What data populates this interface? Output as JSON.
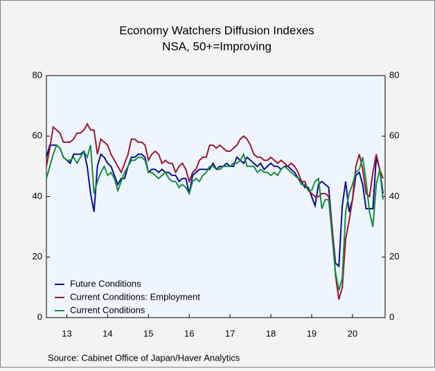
{
  "chart_data": {
    "type": "line",
    "title": "Economy Watchers Diffusion Indexes",
    "subtitle": "NSA, 50+=Improving",
    "source": "Source:  Cabinet Office of Japan/Haver Analytics",
    "legend": "lower left",
    "grid": false,
    "xlim": [
      2013,
      2021.3
    ],
    "xticks": [
      {
        "value": 2013.5,
        "label": "13"
      },
      {
        "value": 2014.5,
        "label": "14"
      },
      {
        "value": 2015.5,
        "label": "15"
      },
      {
        "value": 2016.5,
        "label": "16"
      },
      {
        "value": 2017.5,
        "label": "17"
      },
      {
        "value": 2018.5,
        "label": "18"
      },
      {
        "value": 2019.5,
        "label": "19"
      },
      {
        "value": 2020.5,
        "label": "20"
      }
    ],
    "ylim": [
      0,
      80
    ],
    "yticks": [
      0,
      20,
      40,
      60,
      80
    ],
    "y2lim": [
      0,
      80
    ],
    "y2ticks": [
      0,
      20,
      40,
      60,
      80
    ],
    "x": [
      2013,
      2013.083,
      2013.167,
      2013.25,
      2013.333,
      2013.417,
      2013.5,
      2013.583,
      2013.667,
      2013.75,
      2013.833,
      2013.917,
      2014,
      2014.083,
      2014.167,
      2014.25,
      2014.333,
      2014.417,
      2014.5,
      2014.583,
      2014.667,
      2014.75,
      2014.833,
      2014.917,
      2015,
      2015.083,
      2015.167,
      2015.25,
      2015.333,
      2015.417,
      2015.5,
      2015.583,
      2015.667,
      2015.75,
      2015.833,
      2015.917,
      2016,
      2016.083,
      2016.167,
      2016.25,
      2016.333,
      2016.417,
      2016.5,
      2016.583,
      2016.667,
      2016.75,
      2016.833,
      2016.917,
      2017,
      2017.083,
      2017.167,
      2017.25,
      2017.333,
      2017.417,
      2017.5,
      2017.583,
      2017.667,
      2017.75,
      2017.833,
      2017.917,
      2018,
      2018.083,
      2018.167,
      2018.25,
      2018.333,
      2018.417,
      2018.5,
      2018.583,
      2018.667,
      2018.75,
      2018.833,
      2018.917,
      2019,
      2019.083,
      2019.167,
      2019.25,
      2019.333,
      2019.417,
      2019.5,
      2019.583,
      2019.667,
      2019.75,
      2019.833,
      2019.917,
      2020,
      2020.083,
      2020.167,
      2020.25,
      2020.333,
      2020.417,
      2020.5,
      2020.583,
      2020.667,
      2020.75,
      2020.833,
      2020.917,
      2021,
      2021.083,
      2021.167,
      2021.25
    ],
    "series": [
      {
        "name": "Future Conditions",
        "color": "#0a0a96",
        "values": [
          53,
          57,
          57,
          57,
          56,
          53,
          52,
          51,
          54,
          54,
          54,
          55,
          50,
          41,
          35,
          50,
          54,
          53,
          51,
          50,
          47,
          44,
          46,
          46,
          50,
          53,
          53,
          54,
          54,
          53,
          48,
          49,
          49,
          48,
          49,
          48,
          48,
          47,
          47,
          45,
          46,
          46,
          41,
          47,
          48,
          49,
          49,
          49,
          49,
          51,
          49,
          50,
          50,
          51,
          50,
          50,
          53,
          52,
          51,
          53,
          52,
          51,
          50,
          51,
          49,
          50,
          51,
          50,
          50,
          49,
          50,
          50,
          49,
          48,
          46,
          45,
          43,
          43,
          40,
          37,
          44,
          45,
          44,
          43,
          30,
          18,
          17,
          37,
          45,
          35,
          39,
          47,
          48,
          44,
          36,
          36,
          36,
          53,
          49,
          41
        ]
      },
      {
        "name": "Current Conditions: Employment",
        "color": "#a0142d",
        "values": [
          50,
          56,
          63,
          62,
          61,
          58,
          58,
          58,
          59,
          61,
          61,
          62,
          64,
          62,
          62,
          54,
          59,
          58,
          57,
          54,
          52,
          50,
          48,
          51,
          54,
          59,
          59,
          58,
          58,
          57,
          52,
          54,
          55,
          54,
          51,
          52,
          51,
          51,
          48,
          50,
          51,
          49,
          45,
          48,
          49,
          52,
          53,
          53,
          57,
          57,
          56,
          57,
          56,
          55,
          55,
          56,
          57,
          59,
          60,
          59,
          57,
          54,
          53,
          53,
          52,
          52,
          53,
          52,
          51,
          52,
          51,
          50,
          51,
          50,
          48,
          45,
          45,
          42,
          41,
          40,
          40,
          41,
          41,
          40,
          30,
          14,
          6,
          10,
          26,
          32,
          39,
          50,
          54,
          49,
          41,
          40,
          48,
          54,
          49,
          46
        ]
      },
      {
        "name": "Current Conditions",
        "color": "#148c3c",
        "values": [
          46,
          50,
          54,
          57,
          56,
          53,
          52,
          52,
          53,
          51,
          53,
          55,
          53,
          57,
          41,
          45,
          48,
          50,
          47,
          48,
          46,
          42,
          45,
          48,
          50,
          52,
          52,
          53,
          53,
          52,
          48,
          48,
          47,
          46,
          47,
          48,
          46,
          45,
          45,
          43,
          44,
          43,
          41,
          45,
          46,
          45,
          47,
          48,
          50,
          50,
          49,
          49,
          50,
          50,
          50,
          51,
          51,
          52,
          54,
          50,
          50,
          50,
          48,
          49,
          48,
          48,
          47,
          48,
          47,
          49,
          50,
          49,
          48,
          47,
          46,
          44,
          44,
          42,
          42,
          45,
          46,
          36,
          39,
          39,
          27,
          15,
          9,
          13,
          35,
          41,
          44,
          48,
          49,
          53,
          45,
          35,
          30,
          44,
          49,
          39
        ]
      }
    ]
  }
}
